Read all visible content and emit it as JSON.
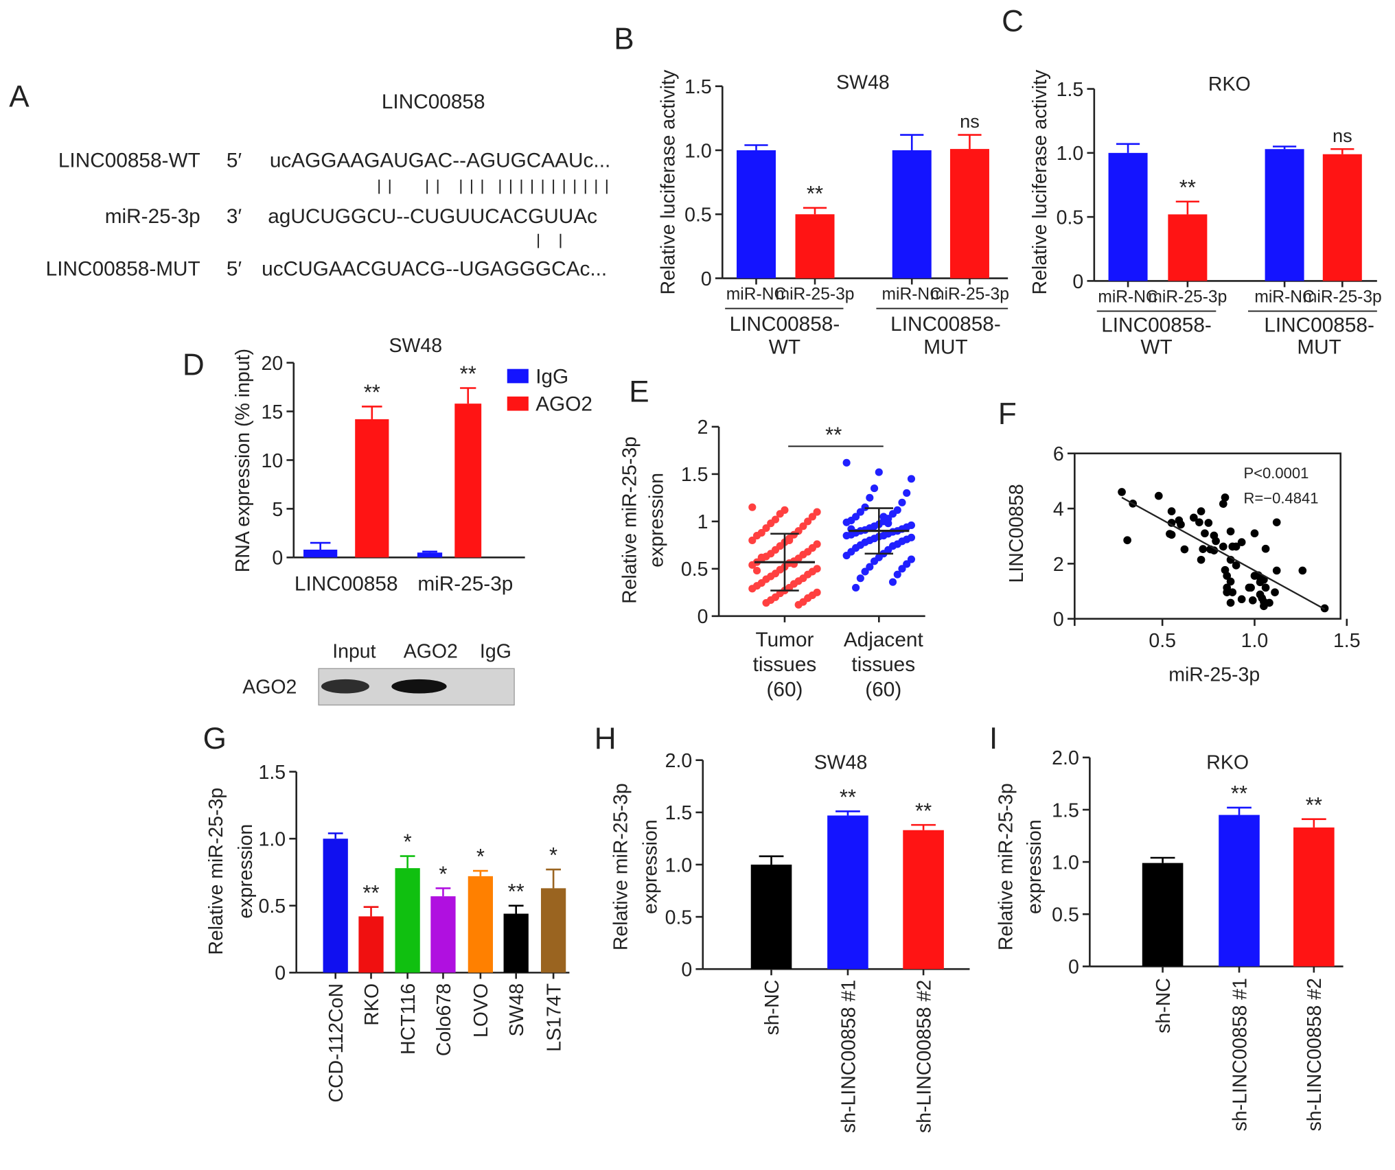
{
  "chart_data": [
    {
      "panel": "A",
      "type": "diagram",
      "title": "LINC00858",
      "rows": [
        {
          "label": "LINC00858-WT",
          "end": "5′",
          "seq": "ucAGGAAGAUGAC--AGUGCAAUc..."
        },
        {
          "label": "miR-25-3p",
          "end": "3′",
          "seq": "agUCUGGCU--CUGUUCACGUUAc"
        },
        {
          "label": "LINC00858-MUT",
          "end": "5′",
          "seq": "ucCUGAACGUACG--UGAGGGCAc..."
        }
      ],
      "wt_pairs": 13,
      "mut_pairs": 2
    },
    {
      "panel": "B",
      "type": "bar",
      "title": "SW48",
      "ylabel": "Relative luciferase activity",
      "ylim": [
        0,
        1.5
      ],
      "yticks": [
        0,
        0.5,
        1.0,
        1.5
      ],
      "ytick_labels": [
        "0",
        "0.5",
        "1.0",
        "1.5"
      ],
      "categories": [
        "miR-NC",
        "miR-25-3p",
        "miR-NC",
        "miR-25-3p"
      ],
      "groups": [
        [
          "LINC00858-",
          "WT"
        ],
        [
          "LINC00858-",
          "MUT"
        ]
      ],
      "values": [
        1.0,
        0.5,
        1.0,
        1.01
      ],
      "error_upper": [
        1.04,
        0.55,
        1.12,
        1.12
      ],
      "colors": [
        "#1414ff",
        "#ff1414",
        "#1414ff",
        "#ff1414"
      ],
      "significance": [
        "",
        "**",
        "",
        "ns"
      ]
    },
    {
      "panel": "C",
      "type": "bar",
      "title": "RKO",
      "ylabel": "Relative luciferase activity",
      "ylim": [
        0,
        1.5
      ],
      "yticks": [
        0,
        0.5,
        1.0,
        1.5
      ],
      "ytick_labels": [
        "0",
        "0.5",
        "1.0",
        "1.5"
      ],
      "categories": [
        "miR-NC",
        "miR-25-3p",
        "miR-NC",
        "miR-25-3p"
      ],
      "groups": [
        [
          "LINC00858-",
          "WT"
        ],
        [
          "LINC00858-",
          "MUT"
        ]
      ],
      "values": [
        1.0,
        0.52,
        1.03,
        0.99
      ],
      "error_upper": [
        1.07,
        0.62,
        1.05,
        1.03
      ],
      "colors": [
        "#1414ff",
        "#ff1414",
        "#1414ff",
        "#ff1414"
      ],
      "significance": [
        "",
        "**",
        "",
        "ns"
      ]
    },
    {
      "panel": "D",
      "type": "bar",
      "title": "SW48",
      "ylabel": "RNA expression (% input)",
      "ylim": [
        0,
        20
      ],
      "yticks": [
        0,
        5,
        10,
        15,
        20
      ],
      "ytick_labels": [
        "0",
        "5",
        "10",
        "15",
        "20"
      ],
      "categories": [
        "LINC00858",
        "miR-25-3p"
      ],
      "series": [
        {
          "name": "IgG",
          "color": "#1414ff",
          "values": [
            0.8,
            0.5
          ],
          "error_upper": [
            1.5,
            0.6
          ]
        },
        {
          "name": "AGO2",
          "color": "#ff1414",
          "values": [
            14.2,
            15.8
          ],
          "error_upper": [
            15.5,
            17.4
          ]
        }
      ],
      "significance": [
        "",
        "**",
        "",
        "**"
      ],
      "legend": "top-right",
      "blot": {
        "lanes": [
          "Input",
          "AGO2",
          "IgG"
        ],
        "row_label": "AGO2",
        "band_intensity": [
          0.85,
          1.0,
          0
        ]
      }
    },
    {
      "panel": "E",
      "type": "scatter",
      "ylabel": [
        "Relative miR-25-3p",
        "expression"
      ],
      "ylim": [
        0,
        2
      ],
      "yticks": [
        0,
        0.5,
        1,
        1.5,
        2
      ],
      "ytick_labels": [
        "0",
        "0.5",
        "1",
        "1.5",
        "2"
      ],
      "categories": [
        [
          "Tumor",
          "tissues",
          "(60)"
        ],
        [
          "Adjacent",
          "tissues",
          "(60)"
        ]
      ],
      "colors": [
        "#ff4040",
        "#2020ff"
      ],
      "means": [
        0.57,
        0.9
      ],
      "sd": [
        0.3,
        0.24
      ],
      "significance": "**",
      "points": [
        [
          1.15,
          1.12,
          1.1,
          1.08,
          1.05,
          1.02,
          1.0,
          0.98,
          0.95,
          0.93,
          0.9,
          0.88,
          0.86,
          0.85,
          0.82,
          0.8,
          0.78,
          0.76,
          0.74,
          0.72,
          0.7,
          0.68,
          0.66,
          0.65,
          0.63,
          0.61,
          0.6,
          0.58,
          0.57,
          0.56,
          0.54,
          0.52,
          0.5,
          0.49,
          0.47,
          0.45,
          0.44,
          0.42,
          0.4,
          0.39,
          0.37,
          0.35,
          0.34,
          0.32,
          0.3,
          0.29,
          0.27,
          0.25,
          0.24,
          0.22,
          0.2,
          0.19,
          0.17,
          0.15,
          0.14,
          0.12,
          0.62,
          0.55,
          0.48,
          0.8
        ],
        [
          1.62,
          1.52,
          1.45,
          1.35,
          1.3,
          1.25,
          1.2,
          1.15,
          1.12,
          1.1,
          1.08,
          1.05,
          1.03,
          1.01,
          1.0,
          0.99,
          0.97,
          0.96,
          0.95,
          0.94,
          0.93,
          0.92,
          0.91,
          0.9,
          0.9,
          0.89,
          0.88,
          0.87,
          0.86,
          0.85,
          0.85,
          0.84,
          0.83,
          0.82,
          0.81,
          0.8,
          0.79,
          0.78,
          0.76,
          0.75,
          0.74,
          0.72,
          0.7,
          0.68,
          0.66,
          0.64,
          0.62,
          0.6,
          0.58,
          0.55,
          0.52,
          0.5,
          0.47,
          0.44,
          0.4,
          0.36,
          0.3,
          0.98,
          0.92,
          1.05
        ]
      ]
    },
    {
      "panel": "F",
      "type": "scatter",
      "xlabel": "miR-25-3p",
      "ylabel": "LINC00858",
      "xlim": [
        0,
        1.5
      ],
      "ylim": [
        0,
        6
      ],
      "xticks": [
        0.5,
        1.0,
        1.5
      ],
      "xtick_labels": [
        "0.5",
        "1.0",
        "1.5"
      ],
      "yticks": [
        0,
        2,
        4,
        6
      ],
      "ytick_labels": [
        "0",
        "2",
        "4",
        "6"
      ],
      "annotations": [
        "P<0.0001",
        "R=−0.4841"
      ],
      "fit_line": [
        [
          0.28,
          4.4
        ],
        [
          1.38,
          0.35
        ]
      ],
      "points": [
        [
          0.28,
          4.6
        ],
        [
          0.34,
          4.18
        ],
        [
          0.31,
          2.85
        ],
        [
          0.48,
          4.46
        ],
        [
          0.55,
          3.9
        ],
        [
          0.55,
          3.48
        ],
        [
          0.59,
          3.57
        ],
        [
          0.6,
          3.42
        ],
        [
          0.54,
          3.08
        ],
        [
          0.62,
          2.52
        ],
        [
          0.67,
          3.67
        ],
        [
          0.71,
          3.9
        ],
        [
          0.7,
          3.5
        ],
        [
          0.75,
          3.48
        ],
        [
          0.73,
          3.1
        ],
        [
          0.71,
          2.14
        ],
        [
          0.72,
          2.53
        ],
        [
          0.76,
          2.52
        ],
        [
          0.78,
          2.48
        ],
        [
          0.78,
          3.02
        ],
        [
          0.79,
          2.82
        ],
        [
          0.83,
          2.62
        ],
        [
          0.84,
          4.4
        ],
        [
          0.83,
          4.17
        ],
        [
          0.87,
          3.17
        ],
        [
          0.88,
          2.62
        ],
        [
          0.9,
          2.62
        ],
        [
          0.93,
          2.78
        ],
        [
          0.87,
          2.14
        ],
        [
          0.9,
          1.94
        ],
        [
          0.84,
          1.77
        ],
        [
          0.85,
          1.56
        ],
        [
          0.87,
          1.35
        ],
        [
          0.85,
          1.13
        ],
        [
          0.85,
          0.96
        ],
        [
          0.88,
          0.96
        ],
        [
          0.87,
          0.58
        ],
        [
          0.93,
          0.71
        ],
        [
          0.97,
          1.13
        ],
        [
          0.98,
          1.13
        ],
        [
          0.99,
          0.67
        ],
        [
          1.0,
          3.1
        ],
        [
          1.0,
          1.56
        ],
        [
          1.03,
          1.5
        ],
        [
          1.05,
          1.42
        ],
        [
          1.03,
          1.33
        ],
        [
          1.06,
          1.13
        ],
        [
          1.03,
          0.88
        ],
        [
          1.05,
          0.62
        ],
        [
          1.05,
          0.46
        ],
        [
          1.08,
          0.58
        ],
        [
          1.06,
          2.54
        ],
        [
          1.11,
          0.96
        ],
        [
          1.12,
          3.5
        ],
        [
          1.12,
          1.75
        ],
        [
          1.26,
          1.75
        ],
        [
          1.38,
          0.38
        ],
        [
          1.04,
          0.75
        ],
        [
          1.02,
          1.58
        ],
        [
          0.55,
          3.05
        ]
      ]
    },
    {
      "panel": "G",
      "type": "bar",
      "ylabel": [
        "Relative miR-25-3p",
        "expression"
      ],
      "ylim": [
        0,
        1.5
      ],
      "yticks": [
        0,
        0.5,
        1.0,
        1.5
      ],
      "ytick_labels": [
        "0",
        "0.5",
        "1.0",
        "1.5"
      ],
      "categories": [
        "CCD-112CoN",
        "RKO",
        "HCT116",
        "Colo678",
        "LOVO",
        "SW48",
        "LS174T"
      ],
      "values": [
        1.0,
        0.42,
        0.78,
        0.57,
        0.72,
        0.44,
        0.63
      ],
      "error_upper": [
        1.04,
        0.49,
        0.87,
        0.63,
        0.76,
        0.5,
        0.77
      ],
      "colors": [
        "#1010f0",
        "#f01010",
        "#10c010",
        "#b010e0",
        "#ff8000",
        "#000000",
        "#9a6420"
      ],
      "significance": [
        "",
        "**",
        "*",
        "*",
        "*",
        "**",
        "*"
      ]
    },
    {
      "panel": "H",
      "type": "bar",
      "title": "SW48",
      "ylabel": [
        "Relative miR-25-3p",
        "expression"
      ],
      "ylim": [
        0,
        2.0
      ],
      "yticks": [
        0,
        0.5,
        1.0,
        1.5,
        2.0
      ],
      "ytick_labels": [
        "0",
        "0.5",
        "1.0",
        "1.5",
        "2.0"
      ],
      "categories": [
        "sh-NC",
        "sh-LINC00858 #1",
        "sh-LINC00858 #2"
      ],
      "values": [
        1.0,
        1.47,
        1.33
      ],
      "error_upper": [
        1.08,
        1.51,
        1.38
      ],
      "colors": [
        "#000000",
        "#1414ff",
        "#ff1414"
      ],
      "significance": [
        "",
        "**",
        "**"
      ]
    },
    {
      "panel": "I",
      "type": "bar",
      "title": "RKO",
      "ylabel": [
        "Relative miR-25-3p",
        "expression"
      ],
      "ylim": [
        0,
        2.0
      ],
      "yticks": [
        0,
        0.5,
        1.0,
        1.5,
        2.0
      ],
      "ytick_labels": [
        "0",
        "0.5",
        "1.0",
        "1.5",
        "2.0"
      ],
      "categories": [
        "sh-NC",
        "sh-LINC00858 #1",
        "sh-LINC00858 #2"
      ],
      "values": [
        0.99,
        1.45,
        1.33
      ],
      "error_upper": [
        1.04,
        1.52,
        1.41
      ],
      "colors": [
        "#000000",
        "#1414ff",
        "#ff1414"
      ],
      "significance": [
        "",
        "**",
        "**"
      ]
    }
  ]
}
